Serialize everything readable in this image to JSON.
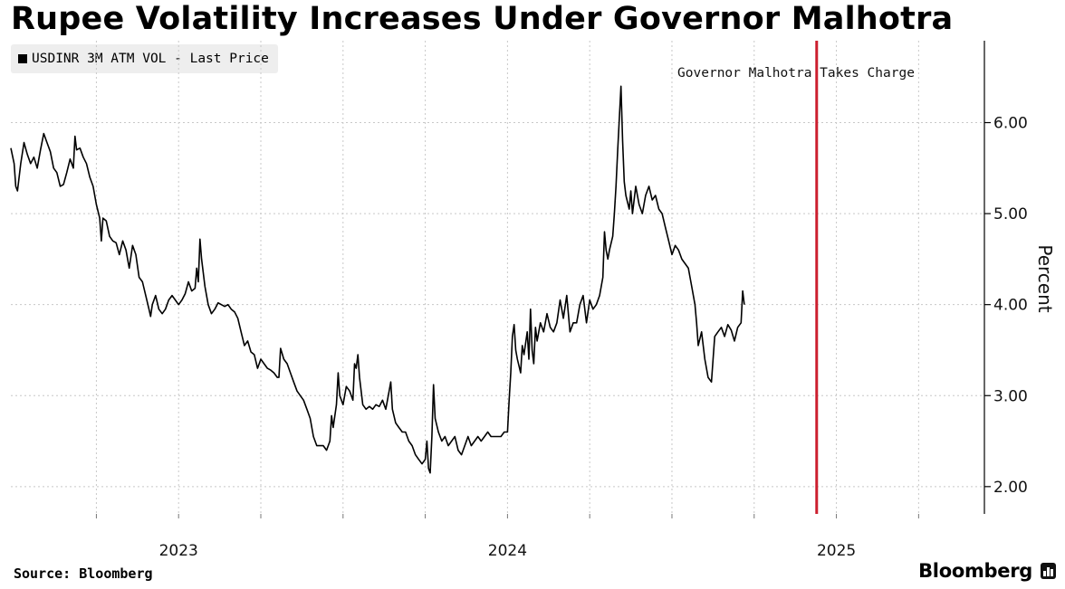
{
  "chart_data": {
    "type": "line",
    "title": "Rupee Volatility Increases Under Governor Malhotra",
    "legend": [
      "USDINR 3M ATM VOL - Last Price"
    ],
    "ylabel": "Percent",
    "xlabel": "",
    "ylim": [
      1.7,
      6.9
    ],
    "yticks": [
      2,
      3,
      4,
      5,
      6
    ],
    "ytick_labels": [
      "2.00",
      "3.00",
      "4.00",
      "5.00",
      "6.00"
    ],
    "xlim": [
      2022.49,
      2025.45
    ],
    "xtick_labels": [
      {
        "label": "2023",
        "x": 2023.0
      },
      {
        "label": "2024",
        "x": 2024.0
      },
      {
        "label": "2025",
        "x": 2025.0
      }
    ],
    "month_gridlines": [
      2022.75,
      2023.0,
      2023.25,
      2023.5,
      2023.75,
      2024.0,
      2024.25,
      2024.5,
      2024.75,
      2025.0,
      2025.25
    ],
    "annotation": {
      "text": "Governor Malhotra Takes Charge",
      "x": 2024.94,
      "color": "#cc1f2f"
    },
    "series": [
      {
        "name": "USDINR 3M ATM VOL - Last Price",
        "points": [
          [
            2022.49,
            5.72
          ],
          [
            2022.5,
            5.55
          ],
          [
            2022.505,
            5.3
          ],
          [
            2022.51,
            5.25
          ],
          [
            2022.52,
            5.55
          ],
          [
            2022.53,
            5.78
          ],
          [
            2022.54,
            5.65
          ],
          [
            2022.55,
            5.55
          ],
          [
            2022.56,
            5.62
          ],
          [
            2022.57,
            5.5
          ],
          [
            2022.58,
            5.7
          ],
          [
            2022.59,
            5.88
          ],
          [
            2022.6,
            5.78
          ],
          [
            2022.61,
            5.68
          ],
          [
            2022.62,
            5.5
          ],
          [
            2022.63,
            5.45
          ],
          [
            2022.64,
            5.3
          ],
          [
            2022.65,
            5.32
          ],
          [
            2022.66,
            5.45
          ],
          [
            2022.67,
            5.6
          ],
          [
            2022.68,
            5.5
          ],
          [
            2022.685,
            5.85
          ],
          [
            2022.69,
            5.7
          ],
          [
            2022.7,
            5.72
          ],
          [
            2022.71,
            5.62
          ],
          [
            2022.72,
            5.55
          ],
          [
            2022.73,
            5.4
          ],
          [
            2022.74,
            5.3
          ],
          [
            2022.75,
            5.1
          ],
          [
            2022.76,
            4.95
          ],
          [
            2022.765,
            4.7
          ],
          [
            2022.77,
            4.95
          ],
          [
            2022.78,
            4.92
          ],
          [
            2022.79,
            4.75
          ],
          [
            2022.8,
            4.7
          ],
          [
            2022.81,
            4.68
          ],
          [
            2022.82,
            4.55
          ],
          [
            2022.83,
            4.7
          ],
          [
            2022.84,
            4.6
          ],
          [
            2022.85,
            4.4
          ],
          [
            2022.86,
            4.65
          ],
          [
            2022.87,
            4.55
          ],
          [
            2022.88,
            4.3
          ],
          [
            2022.89,
            4.25
          ],
          [
            2022.9,
            4.1
          ],
          [
            2022.91,
            3.95
          ],
          [
            2022.915,
            3.87
          ],
          [
            2022.92,
            4.0
          ],
          [
            2022.93,
            4.1
          ],
          [
            2022.94,
            3.95
          ],
          [
            2022.95,
            3.9
          ],
          [
            2022.96,
            3.95
          ],
          [
            2022.97,
            4.05
          ],
          [
            2022.98,
            4.1
          ],
          [
            2022.99,
            4.05
          ],
          [
            2023.0,
            4.0
          ],
          [
            2023.01,
            4.05
          ],
          [
            2023.02,
            4.12
          ],
          [
            2023.03,
            4.25
          ],
          [
            2023.04,
            4.15
          ],
          [
            2023.05,
            4.18
          ],
          [
            2023.055,
            4.4
          ],
          [
            2023.06,
            4.25
          ],
          [
            2023.065,
            4.72
          ],
          [
            2023.07,
            4.5
          ],
          [
            2023.08,
            4.2
          ],
          [
            2023.09,
            4.0
          ],
          [
            2023.1,
            3.9
          ],
          [
            2023.11,
            3.95
          ],
          [
            2023.12,
            4.02
          ],
          [
            2023.13,
            4.0
          ],
          [
            2023.14,
            3.98
          ],
          [
            2023.15,
            4.0
          ],
          [
            2023.16,
            3.95
          ],
          [
            2023.17,
            3.92
          ],
          [
            2023.18,
            3.85
          ],
          [
            2023.19,
            3.7
          ],
          [
            2023.2,
            3.55
          ],
          [
            2023.21,
            3.6
          ],
          [
            2023.22,
            3.48
          ],
          [
            2023.23,
            3.45
          ],
          [
            2023.24,
            3.3
          ],
          [
            2023.25,
            3.4
          ],
          [
            2023.26,
            3.35
          ],
          [
            2023.27,
            3.3
          ],
          [
            2023.28,
            3.28
          ],
          [
            2023.29,
            3.25
          ],
          [
            2023.3,
            3.2
          ],
          [
            2023.305,
            3.2
          ],
          [
            2023.31,
            3.52
          ],
          [
            2023.32,
            3.4
          ],
          [
            2023.33,
            3.35
          ],
          [
            2023.34,
            3.25
          ],
          [
            2023.35,
            3.15
          ],
          [
            2023.36,
            3.05
          ],
          [
            2023.37,
            3.0
          ],
          [
            2023.38,
            2.95
          ],
          [
            2023.39,
            2.85
          ],
          [
            2023.4,
            2.75
          ],
          [
            2023.41,
            2.55
          ],
          [
            2023.42,
            2.45
          ],
          [
            2023.43,
            2.45
          ],
          [
            2023.44,
            2.45
          ],
          [
            2023.45,
            2.4
          ],
          [
            2023.46,
            2.5
          ],
          [
            2023.465,
            2.78
          ],
          [
            2023.47,
            2.65
          ],
          [
            2023.48,
            2.9
          ],
          [
            2023.485,
            3.25
          ],
          [
            2023.49,
            3.0
          ],
          [
            2023.5,
            2.9
          ],
          [
            2023.51,
            3.1
          ],
          [
            2023.52,
            3.05
          ],
          [
            2023.53,
            2.95
          ],
          [
            2023.535,
            3.35
          ],
          [
            2023.54,
            3.3
          ],
          [
            2023.545,
            3.45
          ],
          [
            2023.55,
            3.2
          ],
          [
            2023.56,
            2.9
          ],
          [
            2023.57,
            2.85
          ],
          [
            2023.58,
            2.88
          ],
          [
            2023.59,
            2.85
          ],
          [
            2023.6,
            2.9
          ],
          [
            2023.61,
            2.88
          ],
          [
            2023.62,
            2.95
          ],
          [
            2023.63,
            2.85
          ],
          [
            2023.64,
            3.05
          ],
          [
            2023.645,
            3.15
          ],
          [
            2023.65,
            2.85
          ],
          [
            2023.66,
            2.7
          ],
          [
            2023.67,
            2.65
          ],
          [
            2023.68,
            2.6
          ],
          [
            2023.69,
            2.6
          ],
          [
            2023.7,
            2.5
          ],
          [
            2023.71,
            2.45
          ],
          [
            2023.72,
            2.35
          ],
          [
            2023.73,
            2.3
          ],
          [
            2023.74,
            2.25
          ],
          [
            2023.75,
            2.3
          ],
          [
            2023.755,
            2.5
          ],
          [
            2023.76,
            2.2
          ],
          [
            2023.765,
            2.15
          ],
          [
            2023.77,
            2.55
          ],
          [
            2023.775,
            3.12
          ],
          [
            2023.78,
            2.75
          ],
          [
            2023.79,
            2.6
          ],
          [
            2023.8,
            2.5
          ],
          [
            2023.81,
            2.55
          ],
          [
            2023.82,
            2.45
          ],
          [
            2023.83,
            2.5
          ],
          [
            2023.84,
            2.55
          ],
          [
            2023.85,
            2.4
          ],
          [
            2023.86,
            2.35
          ],
          [
            2023.87,
            2.45
          ],
          [
            2023.88,
            2.55
          ],
          [
            2023.89,
            2.45
          ],
          [
            2023.9,
            2.5
          ],
          [
            2023.91,
            2.55
          ],
          [
            2023.92,
            2.5
          ],
          [
            2023.93,
            2.55
          ],
          [
            2023.94,
            2.6
          ],
          [
            2023.95,
            2.55
          ],
          [
            2023.96,
            2.55
          ],
          [
            2023.97,
            2.55
          ],
          [
            2023.98,
            2.55
          ],
          [
            2023.99,
            2.6
          ],
          [
            2024.0,
            2.6
          ],
          [
            2024.005,
            2.95
          ],
          [
            2024.01,
            3.25
          ],
          [
            2024.015,
            3.65
          ],
          [
            2024.02,
            3.78
          ],
          [
            2024.025,
            3.5
          ],
          [
            2024.03,
            3.4
          ],
          [
            2024.04,
            3.25
          ],
          [
            2024.045,
            3.55
          ],
          [
            2024.05,
            3.45
          ],
          [
            2024.06,
            3.7
          ],
          [
            2024.065,
            3.4
          ],
          [
            2024.07,
            3.95
          ],
          [
            2024.075,
            3.5
          ],
          [
            2024.08,
            3.35
          ],
          [
            2024.085,
            3.75
          ],
          [
            2024.09,
            3.6
          ],
          [
            2024.1,
            3.8
          ],
          [
            2024.11,
            3.7
          ],
          [
            2024.12,
            3.9
          ],
          [
            2024.13,
            3.75
          ],
          [
            2024.14,
            3.7
          ],
          [
            2024.15,
            3.8
          ],
          [
            2024.16,
            4.05
          ],
          [
            2024.17,
            3.85
          ],
          [
            2024.18,
            4.1
          ],
          [
            2024.19,
            3.7
          ],
          [
            2024.2,
            3.8
          ],
          [
            2024.21,
            3.8
          ],
          [
            2024.22,
            4.0
          ],
          [
            2024.23,
            4.1
          ],
          [
            2024.24,
            3.8
          ],
          [
            2024.25,
            4.05
          ],
          [
            2024.26,
            3.95
          ],
          [
            2024.27,
            4.0
          ],
          [
            2024.28,
            4.1
          ],
          [
            2024.29,
            4.3
          ],
          [
            2024.295,
            4.8
          ],
          [
            2024.3,
            4.6
          ],
          [
            2024.305,
            4.5
          ],
          [
            2024.31,
            4.6
          ],
          [
            2024.32,
            4.75
          ],
          [
            2024.325,
            5.0
          ],
          [
            2024.33,
            5.3
          ],
          [
            2024.335,
            5.7
          ],
          [
            2024.34,
            6.05
          ],
          [
            2024.345,
            6.4
          ],
          [
            2024.35,
            5.8
          ],
          [
            2024.355,
            5.35
          ],
          [
            2024.36,
            5.2
          ],
          [
            2024.37,
            5.05
          ],
          [
            2024.375,
            5.25
          ],
          [
            2024.38,
            5.0
          ],
          [
            2024.39,
            5.3
          ],
          [
            2024.4,
            5.1
          ],
          [
            2024.41,
            5.0
          ],
          [
            2024.42,
            5.2
          ],
          [
            2024.43,
            5.3
          ],
          [
            2024.44,
            5.15
          ],
          [
            2024.45,
            5.2
          ],
          [
            2024.46,
            5.05
          ],
          [
            2024.47,
            5.0
          ],
          [
            2024.48,
            4.85
          ],
          [
            2024.49,
            4.7
          ],
          [
            2024.5,
            4.55
          ],
          [
            2024.51,
            4.65
          ],
          [
            2024.52,
            4.6
          ],
          [
            2024.53,
            4.5
          ],
          [
            2024.54,
            4.45
          ],
          [
            2024.55,
            4.4
          ],
          [
            2024.56,
            4.2
          ],
          [
            2024.57,
            4.0
          ],
          [
            2024.575,
            3.8
          ],
          [
            2024.58,
            3.55
          ],
          [
            2024.59,
            3.7
          ],
          [
            2024.6,
            3.4
          ],
          [
            2024.61,
            3.2
          ],
          [
            2024.62,
            3.15
          ],
          [
            2024.625,
            3.4
          ],
          [
            2024.63,
            3.65
          ],
          [
            2024.64,
            3.7
          ],
          [
            2024.65,
            3.75
          ],
          [
            2024.66,
            3.65
          ],
          [
            2024.67,
            3.78
          ],
          [
            2024.68,
            3.72
          ],
          [
            2024.69,
            3.6
          ],
          [
            2024.7,
            3.75
          ],
          [
            2024.71,
            3.8
          ],
          [
            2024.715,
            4.15
          ],
          [
            2024.72,
            4.0
          ]
        ]
      }
    ]
  },
  "source": "Source: Bloomberg",
  "brand": "Bloomberg",
  "colors": {
    "line": "#000000",
    "annotation": "#cc1f2f",
    "grid": "#c8c8c8"
  }
}
